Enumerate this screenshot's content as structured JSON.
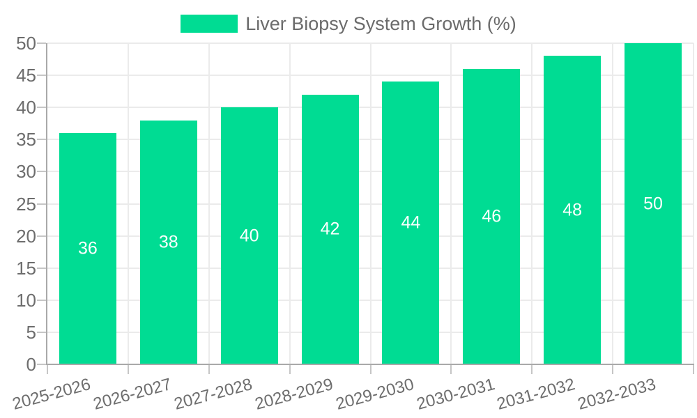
{
  "chart_data": {
    "type": "bar",
    "legend": "Liver Biopsy System Growth (%)",
    "legend_position": "top",
    "categories": [
      "2025-2026",
      "2026-2027",
      "2027-2028",
      "2028-2029",
      "2029-2030",
      "2030-2031",
      "2031-2032",
      "2032-2033"
    ],
    "values": [
      36,
      38,
      40,
      42,
      44,
      46,
      48,
      50
    ],
    "data_labels": [
      "36",
      "38",
      "40",
      "42",
      "44",
      "46",
      "48",
      "50"
    ],
    "y_tick_labels": [
      "0",
      "5",
      "10",
      "15",
      "20",
      "25",
      "30",
      "35",
      "40",
      "45",
      "50"
    ],
    "ylim": [
      0,
      50
    ],
    "ytick_step": 5,
    "grid": true,
    "x_label_rotation_deg": -15,
    "xlabel": "",
    "ylabel": "",
    "colors": {
      "bar": "#00dc93",
      "data_label": "#ffffff",
      "axis_label": "#6d6d6d",
      "legend_text": "#6b6b6b",
      "grid_line": "#ebebeb",
      "axis_line": "#a9a9a9",
      "tick": "#c6c6c6",
      "background": "#ffffff"
    }
  }
}
